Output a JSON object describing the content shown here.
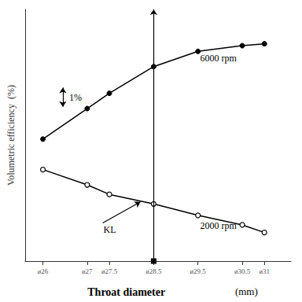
{
  "chart_data": {
    "type": "line",
    "xlabel": "Throat diameter",
    "xlabel_unit": "(mm)",
    "ylabel": "Volumetric efficiency  (%)",
    "x": [
      26,
      27,
      27.5,
      28.5,
      29.5,
      30.5,
      31
    ],
    "series": [
      {
        "color": "#000000",
        "marker": "filled_circle",
        "values": [
          68,
          76,
          80,
          87,
          91,
          92.5,
          93
        ]
      },
      {
        "color": "#000000",
        "marker": "open_circle",
        "values": [
          60,
          56,
          53.5,
          51,
          48,
          45.5,
          43.5
        ]
      }
    ],
    "xlim": [
      25.6,
      31.6
    ],
    "xticks": [
      {
        "value": 26,
        "label": "ø26"
      },
      {
        "value": 27,
        "label": "ø27"
      },
      {
        "value": 27.5,
        "label": "ø27.5"
      },
      {
        "value": 28.5,
        "label": "ø28.5"
      },
      {
        "value": 29.5,
        "label": "ø29.5"
      },
      {
        "value": 30.5,
        "label": "ø30.5"
      },
      {
        "value": 31,
        "label": "ø31"
      }
    ],
    "ylim": [
      36,
      102
    ],
    "yticks": [],
    "tick_labels": "x",
    "grid": false,
    "vline": 28.5,
    "annotations": [
      {
        "text": "6000 rpm",
        "x": 29.55,
        "y": 88
      },
      {
        "text": "2000 rpm",
        "x": 29.55,
        "y": 46.5
      },
      {
        "text": "KL",
        "x": 27.35,
        "y": 46,
        "arrow_to": [
          28.2,
          51.5
        ]
      }
    ],
    "error_bar": {
      "text": "1%",
      "x": 26.45,
      "y": 79,
      "ymin": 76.5,
      "ymax": 81.5
    }
  }
}
